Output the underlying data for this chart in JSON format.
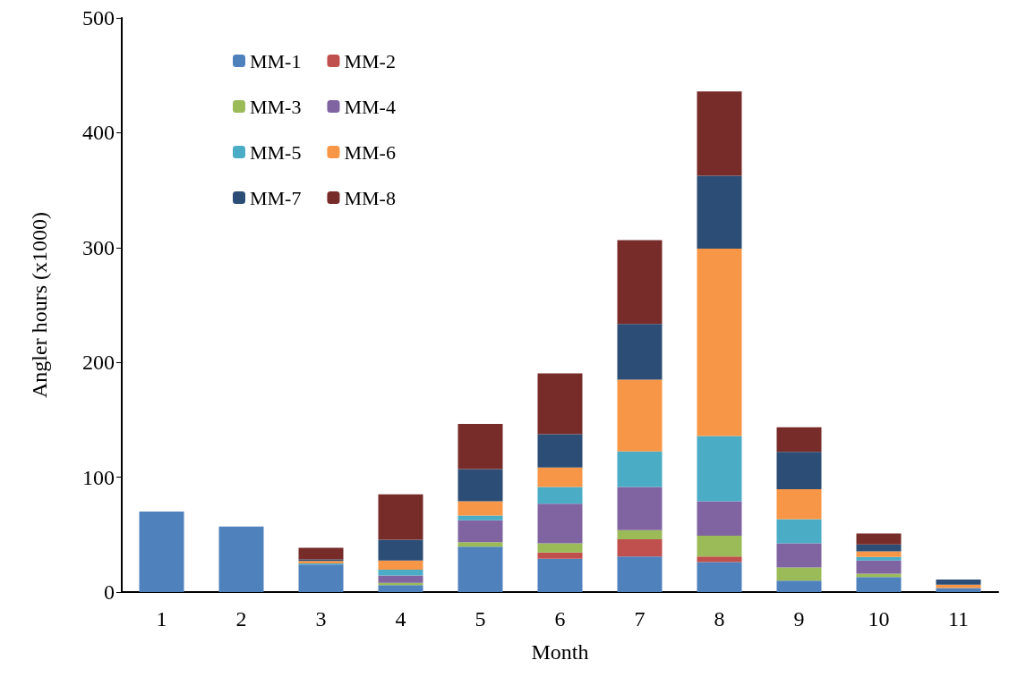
{
  "chart_data": {
    "type": "bar",
    "stacked": true,
    "xlabel": "Month",
    "ylabel": "Angler hours (x1000)",
    "categories": [
      "1",
      "2",
      "3",
      "4",
      "5",
      "6",
      "7",
      "8",
      "9",
      "10",
      "11"
    ],
    "series": [
      {
        "name": "MM-1",
        "color": "#4f81bd",
        "values": [
          70,
          57,
          24,
          6,
          39.5,
          29,
          31,
          26,
          10,
          13,
          3.5
        ]
      },
      {
        "name": "MM-2",
        "color": "#c0504d",
        "values": [
          0,
          0,
          0,
          0,
          0,
          5.5,
          15,
          5,
          0,
          0,
          0
        ]
      },
      {
        "name": "MM-3",
        "color": "#9bbb59",
        "values": [
          0,
          0,
          0,
          2,
          4,
          8,
          8,
          18,
          11.5,
          3,
          0
        ]
      },
      {
        "name": "MM-4",
        "color": "#8064a2",
        "values": [
          0,
          0,
          0,
          6.5,
          19,
          34.5,
          37.5,
          30,
          21,
          11.5,
          0
        ]
      },
      {
        "name": "MM-5",
        "color": "#4bacc6",
        "values": [
          0,
          0,
          1,
          5,
          4,
          14.5,
          31,
          57,
          21,
          3,
          0
        ]
      },
      {
        "name": "MM-6",
        "color": "#f79646",
        "values": [
          0,
          0,
          2,
          8,
          12.5,
          17,
          62.5,
          163,
          26,
          5,
          3
        ]
      },
      {
        "name": "MM-7",
        "color": "#2c4d75",
        "values": [
          0,
          0,
          1.5,
          18,
          28,
          29,
          48.5,
          63.5,
          32.5,
          6,
          4.5
        ]
      },
      {
        "name": "MM-8",
        "color": "#772c2a",
        "values": [
          0,
          0,
          10,
          39.5,
          39.5,
          53,
          73,
          73.5,
          21.5,
          9.5,
          0
        ]
      }
    ],
    "ylim": [
      0,
      500
    ],
    "yticks": [
      0,
      100,
      200,
      300,
      400,
      500
    ],
    "grid": false,
    "legend": "top left"
  }
}
